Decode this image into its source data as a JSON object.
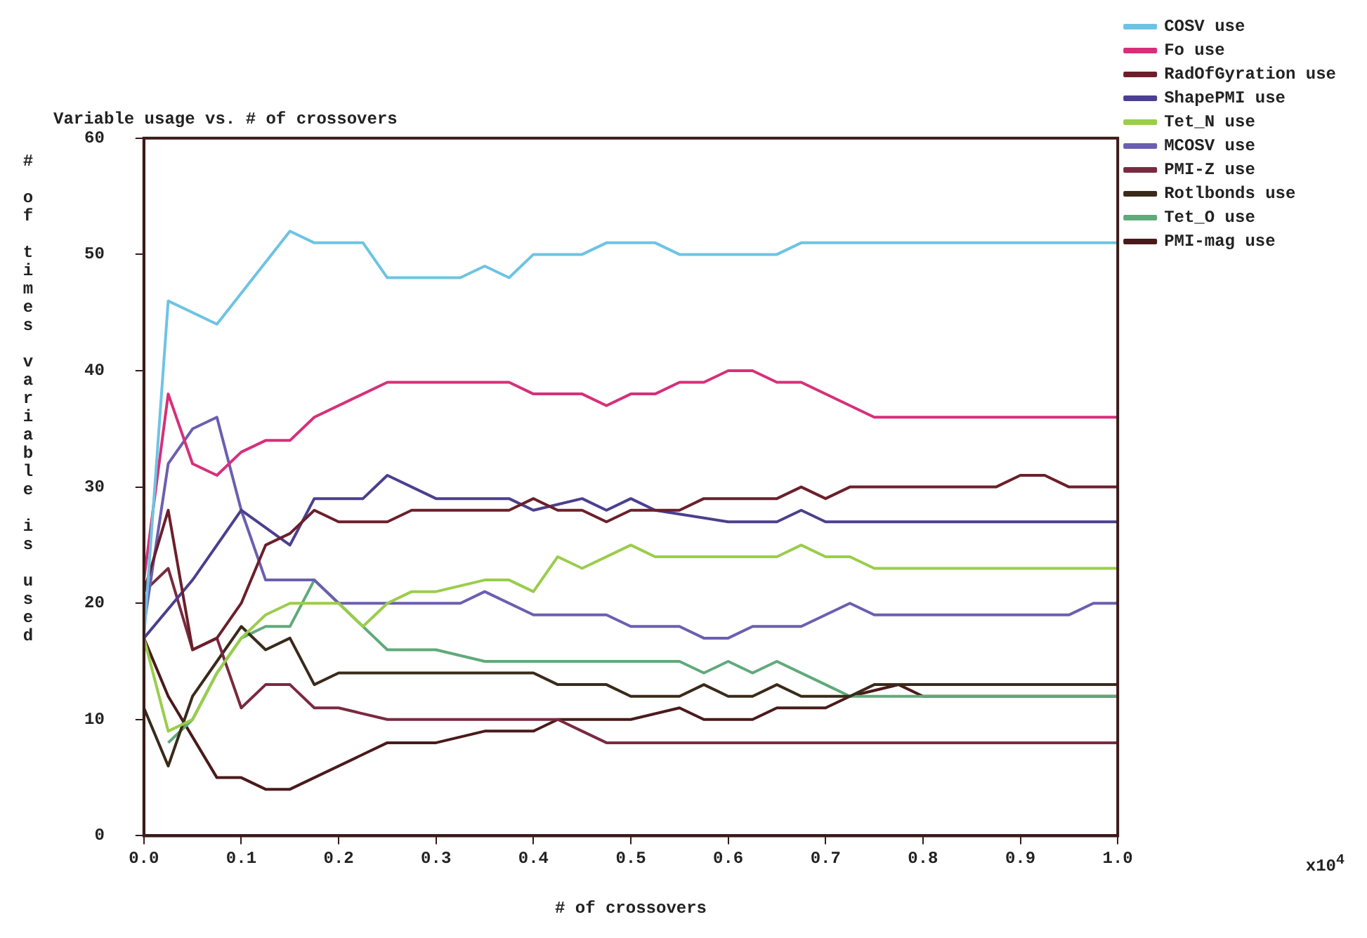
{
  "chart_data": {
    "type": "line",
    "title": "Variable usage vs. # of crossovers",
    "xlabel": "# of crossovers",
    "ylabel": "# of times variable is used",
    "annotations": [
      "x10$^{4}$"
    ],
    "xlim": [
      0,
      1
    ],
    "xticks": [
      {
        "value": 0,
        "label": "0.0"
      },
      {
        "value": 0.1,
        "label": "0.1"
      },
      {
        "value": 0.2,
        "label": "0.2"
      },
      {
        "value": 0.3,
        "label": "0.3"
      },
      {
        "value": 0.4,
        "label": "0.4"
      },
      {
        "value": 0.5,
        "label": "0.5"
      },
      {
        "value": 0.6,
        "label": "0.6"
      },
      {
        "value": 0.7,
        "label": "0.7"
      },
      {
        "value": 0.8,
        "label": "0.8"
      },
      {
        "value": 0.9,
        "label": "0.9"
      },
      {
        "value": 1,
        "label": "1.0"
      }
    ],
    "ylim": [
      0,
      60
    ],
    "yticks": [
      0,
      10,
      20,
      30,
      40,
      50,
      60
    ],
    "grid": false,
    "legend": "top right",
    "marker": "none",
    "line_style": "solid",
    "series": [
      {
        "name": "COSV use",
        "color": "#6ec3e3",
        "x": [
          0,
          0.025,
          0.075,
          0.15,
          0.175,
          0.225,
          0.25,
          0.325,
          0.35,
          0.375,
          0.4,
          0.45,
          0.475,
          0.525,
          0.55,
          0.65,
          0.675,
          1
        ],
        "values": [
          17,
          46,
          44,
          52,
          51,
          51,
          48,
          48,
          49,
          48,
          50,
          50,
          51,
          51,
          50,
          50,
          51,
          51
        ]
      },
      {
        "name": "Fo use",
        "color": "#d6307a",
        "x": [
          0,
          0.025,
          0.05,
          0.075,
          0.1,
          0.125,
          0.15,
          0.175,
          0.25,
          0.375,
          0.4,
          0.45,
          0.475,
          0.5,
          0.525,
          0.55,
          0.575,
          0.6,
          0.625,
          0.65,
          0.675,
          0.75,
          1
        ],
        "values": [
          22,
          38,
          32,
          31,
          33,
          34,
          34,
          36,
          39,
          39,
          38,
          38,
          37,
          38,
          38,
          39,
          39,
          40,
          40,
          39,
          39,
          36,
          36
        ]
      },
      {
        "name": "RadOfGyration use",
        "color": "#6b1f2a",
        "x": [
          0,
          0.025,
          0.05,
          0.075,
          0.1,
          0.125,
          0.15,
          0.175,
          0.2,
          0.25,
          0.275,
          0.375,
          0.4,
          0.425,
          0.45,
          0.475,
          0.5,
          0.55,
          0.575,
          0.65,
          0.675,
          0.7,
          0.725,
          0.875,
          0.9,
          0.925,
          0.95,
          1
        ],
        "values": [
          21,
          28,
          16,
          17,
          20,
          25,
          26,
          28,
          27,
          27,
          28,
          28,
          29,
          28,
          28,
          27,
          28,
          28,
          29,
          29,
          30,
          29,
          30,
          30,
          31,
          31,
          30,
          30
        ]
      },
      {
        "name": "ShapePMI use",
        "color": "#4b3f8f",
        "x": [
          0,
          0.05,
          0.1,
          0.15,
          0.175,
          0.225,
          0.25,
          0.3,
          0.375,
          0.4,
          0.45,
          0.475,
          0.5,
          0.525,
          0.6,
          0.65,
          0.675,
          0.7,
          1
        ],
        "values": [
          17,
          22,
          28,
          25,
          29,
          29,
          31,
          29,
          29,
          28,
          29,
          28,
          29,
          28,
          27,
          27,
          28,
          27,
          27
        ]
      },
      {
        "name": "Tet_N use",
        "color": "#9acd4a",
        "x": [
          0,
          0.025,
          0.05,
          0.075,
          0.1,
          0.125,
          0.15,
          0.175,
          0.2,
          0.225,
          0.25,
          0.275,
          0.3,
          0.35,
          0.375,
          0.4,
          0.425,
          0.45,
          0.5,
          0.525,
          0.65,
          0.675,
          0.7,
          0.725,
          0.75,
          1
        ],
        "values": [
          17,
          9,
          10,
          14,
          17,
          19,
          20,
          20,
          20,
          18,
          20,
          21,
          21,
          22,
          22,
          21,
          24,
          23,
          25,
          24,
          24,
          25,
          24,
          24,
          23,
          23
        ]
      },
      {
        "name": "MCOSV use",
        "color": "#6b5fb0",
        "x": [
          0,
          0.025,
          0.05,
          0.075,
          0.1,
          0.125,
          0.175,
          0.2,
          0.325,
          0.35,
          0.4,
          0.475,
          0.5,
          0.55,
          0.575,
          0.6,
          0.625,
          0.675,
          0.725,
          0.75,
          0.95,
          0.975,
          1
        ],
        "values": [
          18,
          32,
          35,
          36,
          28,
          22,
          22,
          20,
          20,
          21,
          19,
          19,
          18,
          18,
          17,
          17,
          18,
          18,
          20,
          19,
          19,
          20,
          20
        ]
      },
      {
        "name": "PMI-Z use",
        "color": "#7a2a40",
        "x": [
          0,
          0.025,
          0.05,
          0.075,
          0.1,
          0.125,
          0.15,
          0.175,
          0.2,
          0.25,
          0.425,
          0.45,
          0.475,
          1
        ],
        "values": [
          21,
          23,
          16,
          17,
          11,
          13,
          13,
          11,
          11,
          10,
          10,
          9,
          8,
          8
        ]
      },
      {
        "name": "Rotlbonds use",
        "color": "#3a2a1a",
        "x": [
          0,
          0.025,
          0.05,
          0.075,
          0.1,
          0.125,
          0.15,
          0.175,
          0.2,
          0.4,
          0.425,
          0.475,
          0.5,
          0.55,
          0.575,
          0.6,
          0.625,
          0.65,
          0.675,
          0.725,
          0.75,
          1
        ],
        "values": [
          11,
          6,
          12,
          15,
          18,
          16,
          17,
          13,
          14,
          14,
          13,
          13,
          12,
          12,
          13,
          12,
          12,
          13,
          12,
          12,
          13,
          13
        ]
      },
      {
        "name": "Tet_O use",
        "color": "#5faa7a",
        "x": [
          0.025,
          0.05,
          0.075,
          0.1,
          0.125,
          0.15,
          0.175,
          0.25,
          0.3,
          0.35,
          0.55,
          0.575,
          0.6,
          0.625,
          0.65,
          0.7,
          0.725,
          1
        ],
        "values": [
          8,
          10,
          14,
          17,
          18,
          18,
          22,
          16,
          16,
          15,
          15,
          14,
          15,
          14,
          15,
          13,
          12,
          12
        ]
      },
      {
        "name": "PMI-mag use",
        "color": "#4a1a1a",
        "x": [
          0,
          0.025,
          0.075,
          0.1,
          0.125,
          0.15,
          0.25,
          0.3,
          0.35,
          0.4,
          0.425,
          0.5,
          0.55,
          0.575,
          0.625,
          0.65,
          0.7,
          0.725,
          0.775,
          0.8,
          1
        ],
        "values": [
          17,
          12,
          5,
          5,
          4,
          4,
          8,
          8,
          9,
          9,
          10,
          10,
          11,
          10,
          10,
          11,
          11,
          12,
          13,
          12,
          12
        ]
      }
    ]
  }
}
